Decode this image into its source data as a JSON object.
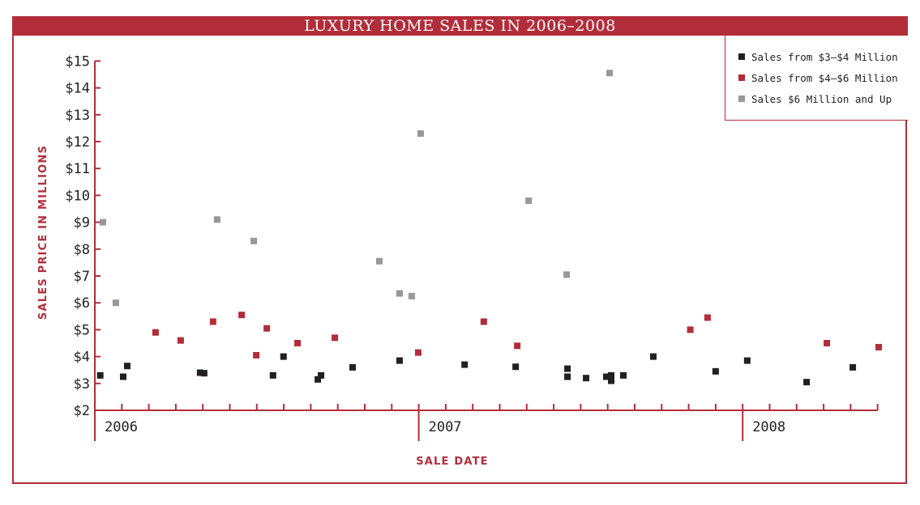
{
  "header": {
    "title": "LUXURY HOME SALES IN 2006–2008"
  },
  "legend": {
    "items": [
      {
        "label": "Sales from $3–$4 Million",
        "color": "#231f20"
      },
      {
        "label": "Sales from $4–$6 Million",
        "color": "#b22d3a"
      },
      {
        "label": "Sales $6 Million and Up",
        "color": "#98979b"
      }
    ]
  },
  "axes": {
    "ylabel": "SALES PRICE IN MILLIONS",
    "xlabel": "SALE DATE",
    "yticks": [
      "$2",
      "$3",
      "$4",
      "$5",
      "$6",
      "$7",
      "$8",
      "$9",
      "$10",
      "$11",
      "$12",
      "$13",
      "$14",
      "$15"
    ],
    "year_labels": [
      "2006",
      "2007",
      "2008"
    ]
  },
  "chart_data": {
    "type": "scatter",
    "title": "LUXURY HOME SALES IN 2006–2008",
    "xlabel": "SALE DATE",
    "ylabel": "SALES PRICE IN MILLIONS",
    "x_unit": "months since Jan 2006",
    "xlim": [
      0,
      29
    ],
    "ylim": [
      2,
      15
    ],
    "x_year_ticks": [
      {
        "label": "2006",
        "x": 0
      },
      {
        "label": "2007",
        "x": 12
      },
      {
        "label": "2008",
        "x": 24
      }
    ],
    "legend_position": "top-right",
    "grid": false,
    "series": [
      {
        "name": "Sales from $3–$4 Million",
        "color": "#231f20",
        "points": [
          [
            0.2,
            3.3
          ],
          [
            1.05,
            3.25
          ],
          [
            1.2,
            3.65
          ],
          [
            3.9,
            3.4
          ],
          [
            4.05,
            3.38
          ],
          [
            6.6,
            3.3
          ],
          [
            6.99,
            4.0
          ],
          [
            8.26,
            3.15
          ],
          [
            8.38,
            3.3
          ],
          [
            9.55,
            3.6
          ],
          [
            11.29,
            3.85
          ],
          [
            13.7,
            3.7
          ],
          [
            15.59,
            3.62
          ],
          [
            17.51,
            3.55
          ],
          [
            17.51,
            3.25
          ],
          [
            18.2,
            3.2
          ],
          [
            18.95,
            3.25
          ],
          [
            19.13,
            3.3
          ],
          [
            19.13,
            3.1
          ],
          [
            19.58,
            3.3
          ],
          [
            20.69,
            4.0
          ],
          [
            23.0,
            3.45
          ],
          [
            24.17,
            3.85
          ],
          [
            26.37,
            3.05
          ],
          [
            28.08,
            3.6
          ]
        ]
      },
      {
        "name": "Sales from $4–$6 Million",
        "color": "#b22d3a",
        "points": [
          [
            2.25,
            4.9
          ],
          [
            3.18,
            4.6
          ],
          [
            4.38,
            5.3
          ],
          [
            5.44,
            5.55
          ],
          [
            5.98,
            4.05
          ],
          [
            6.37,
            5.05
          ],
          [
            7.51,
            4.5
          ],
          [
            8.89,
            4.7
          ],
          [
            11.98,
            4.15
          ],
          [
            14.41,
            5.3
          ],
          [
            15.65,
            4.4
          ],
          [
            22.06,
            5.0
          ],
          [
            22.7,
            5.45
          ],
          [
            27.12,
            4.5
          ],
          [
            29.04,
            4.35
          ]
        ]
      },
      {
        "name": "Sales $6 Million and Up",
        "color": "#98979b",
        "points": [
          [
            0.3,
            9.0
          ],
          [
            0.78,
            6.0
          ],
          [
            4.53,
            9.1
          ],
          [
            5.89,
            8.3
          ],
          [
            10.54,
            7.55
          ],
          [
            11.29,
            6.35
          ],
          [
            11.74,
            6.25
          ],
          [
            12.07,
            12.3
          ],
          [
            16.07,
            9.8
          ],
          [
            17.48,
            7.05
          ],
          [
            19.07,
            14.55
          ]
        ]
      }
    ]
  }
}
